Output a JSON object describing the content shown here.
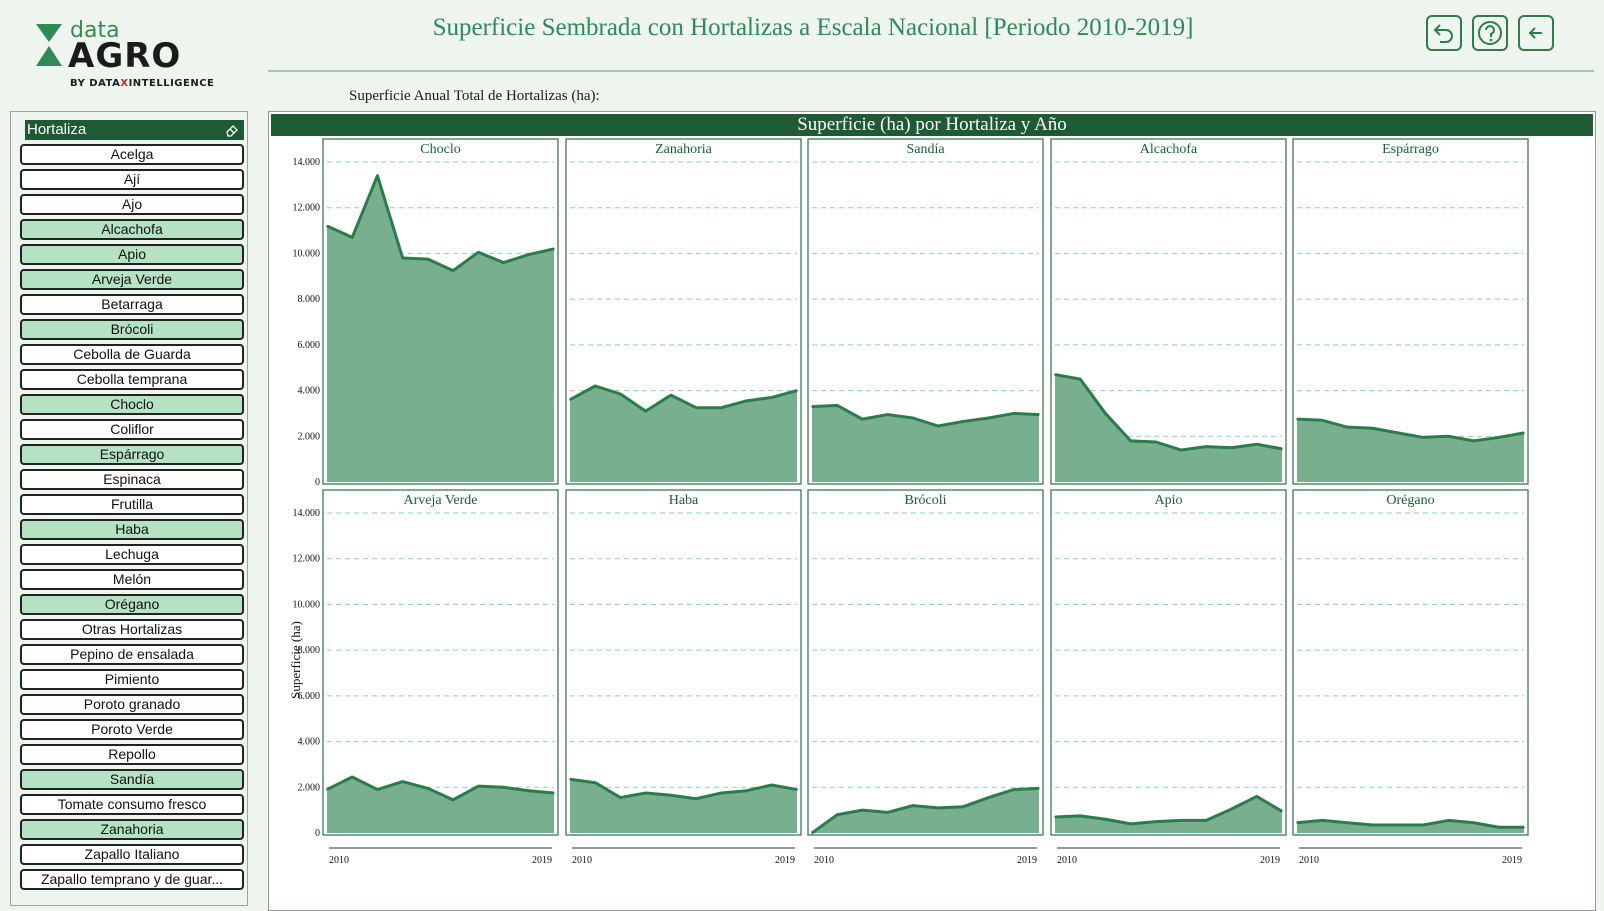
{
  "logo": {
    "word_top": "data",
    "word_main": "AGRO",
    "byline_prefix": "BY DATA",
    "byline_x": "X",
    "byline_suffix": "INTELLIGENCE"
  },
  "header": {
    "title": "Superficie Sembrada con Hortalizas a Escala Nacional [Periodo 2010-2019]",
    "buttons": [
      {
        "icon": "undo-icon"
      },
      {
        "icon": "help-icon"
      },
      {
        "icon": "back-arrow-icon"
      }
    ]
  },
  "subtitle": "Superficie Anual Total de Hortalizas (ha):",
  "filter": {
    "title": "Hortaliza",
    "items": [
      {
        "label": "Acelga",
        "selected": false
      },
      {
        "label": "Ají",
        "selected": false
      },
      {
        "label": "Ajo",
        "selected": false
      },
      {
        "label": "Alcachofa",
        "selected": true
      },
      {
        "label": "Apio",
        "selected": true
      },
      {
        "label": "Arveja Verde",
        "selected": true
      },
      {
        "label": "Betarraga",
        "selected": false
      },
      {
        "label": "Brócoli",
        "selected": true
      },
      {
        "label": "Cebolla de Guarda",
        "selected": false
      },
      {
        "label": "Cebolla temprana",
        "selected": false
      },
      {
        "label": "Choclo",
        "selected": true
      },
      {
        "label": "Coliflor",
        "selected": false
      },
      {
        "label": "Espárrago",
        "selected": true
      },
      {
        "label": "Espinaca",
        "selected": false
      },
      {
        "label": "Frutilla",
        "selected": false
      },
      {
        "label": "Haba",
        "selected": true
      },
      {
        "label": "Lechuga",
        "selected": false
      },
      {
        "label": "Melón",
        "selected": false
      },
      {
        "label": "Orégano",
        "selected": true
      },
      {
        "label": "Otras Hortalizas",
        "selected": false
      },
      {
        "label": "Pepino de ensalada",
        "selected": false
      },
      {
        "label": "Pimiento",
        "selected": false
      },
      {
        "label": "Poroto granado",
        "selected": false
      },
      {
        "label": "Poroto Verde",
        "selected": false
      },
      {
        "label": "Repollo",
        "selected": false
      },
      {
        "label": "Sandía",
        "selected": true
      },
      {
        "label": "Tomate consumo fresco",
        "selected": false
      },
      {
        "label": "Zanahoria",
        "selected": true
      },
      {
        "label": "Zapallo Italiano",
        "selected": false
      },
      {
        "label": "Zapallo temprano y de guar...",
        "selected": false
      }
    ]
  },
  "colors": {
    "area_fill": "#78b08f",
    "line": "#2a7d4b",
    "header_bg": "#1e5a33",
    "title_text": "#2e8b57",
    "selected_item": "#b6e2c4"
  },
  "chart_data": {
    "type": "area",
    "title": "Superficie (ha) por Hortaliza y Año",
    "ylabel": "Superficie (ha)",
    "xlabel": "",
    "x": [
      2010,
      2011,
      2012,
      2013,
      2014,
      2015,
      2016,
      2017,
      2018,
      2019
    ],
    "x_tick_labels": [
      "2010",
      "2019"
    ],
    "ylim": [
      0,
      14000
    ],
    "y_ticks": [
      0,
      2000,
      4000,
      6000,
      8000,
      10000,
      12000,
      14000
    ],
    "y_tick_labels": [
      "0",
      "2.000",
      "4.000",
      "6.000",
      "8.000",
      "10.000",
      "12.000",
      "14.000"
    ],
    "grid": "horizontal dashed",
    "layout": "small multiples, 2 rows x 5 columns",
    "series": [
      {
        "name": "Choclo",
        "values": [
          11200,
          10700,
          13400,
          9800,
          9750,
          9250,
          10050,
          9600,
          9950,
          10200
        ]
      },
      {
        "name": "Zanahoria",
        "values": [
          3600,
          4200,
          3850,
          3100,
          3800,
          3250,
          3250,
          3550,
          3700,
          4000
        ]
      },
      {
        "name": "Sandía",
        "values": [
          3300,
          3350,
          2750,
          2950,
          2800,
          2450,
          2650,
          2800,
          3000,
          2950
        ]
      },
      {
        "name": "Alcachofa",
        "values": [
          4700,
          4500,
          3000,
          1800,
          1750,
          1400,
          1550,
          1500,
          1650,
          1450
        ]
      },
      {
        "name": "Espárrago",
        "values": [
          2750,
          2700,
          2400,
          2350,
          2150,
          1950,
          2000,
          1800,
          1950,
          2150
        ]
      },
      {
        "name": "Arveja Verde",
        "values": [
          1900,
          2450,
          1900,
          2250,
          1950,
          1450,
          2050,
          2000,
          1850,
          1750
        ]
      },
      {
        "name": "Haba",
        "values": [
          2350,
          2200,
          1550,
          1750,
          1650,
          1500,
          1750,
          1850,
          2100,
          1900
        ]
      },
      {
        "name": "Brócoli",
        "values": [
          0,
          800,
          1000,
          900,
          1200,
          1100,
          1150,
          1550,
          1900,
          1950
        ]
      },
      {
        "name": "Apio",
        "values": [
          700,
          750,
          600,
          400,
          500,
          550,
          550,
          1050,
          1600,
          950
        ]
      },
      {
        "name": "Orégano",
        "values": [
          450,
          550,
          450,
          350,
          350,
          350,
          550,
          450,
          250,
          250
        ]
      }
    ]
  }
}
